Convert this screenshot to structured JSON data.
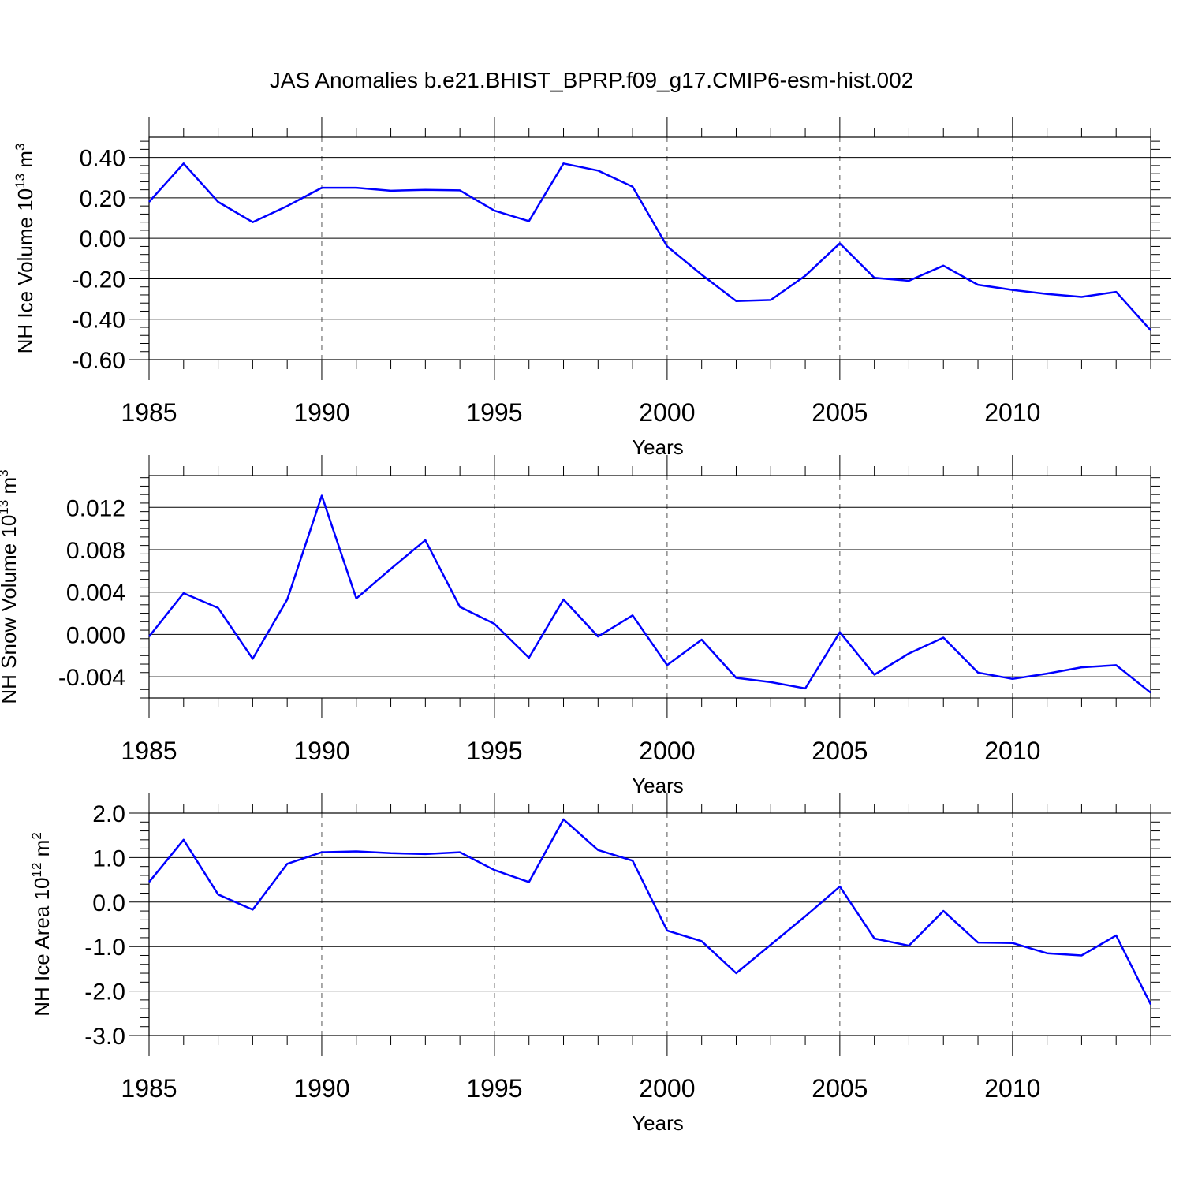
{
  "title": "JAS Anomalies b.e21.BHIST_BPRP.f09_g17.CMIP6-esm-hist.002",
  "colors": {
    "series": "#0000ff",
    "axes": "#000000",
    "grid": "#555555"
  },
  "chart_data": [
    {
      "type": "line",
      "ylabel": "NH Ice Volume 10",
      "ylabel_exp": "13",
      "ylabel_unit": "m",
      "ylabel_unit_exp": "3",
      "xlabel": "Years",
      "xlim": [
        1985,
        2014
      ],
      "ylim": [
        -0.6,
        0.5
      ],
      "yticks": [
        -0.6,
        -0.4,
        -0.2,
        0.0,
        0.2,
        0.4
      ],
      "ytick_labels": [
        "-0.60",
        "-0.40",
        "-0.20",
        "0.00",
        "0.20",
        "0.40"
      ],
      "xticks": [
        1985,
        1990,
        1995,
        2000,
        2005,
        2010
      ],
      "xtick_labels": [
        "1985",
        "1990",
        "1995",
        "2000",
        "2005",
        "2010"
      ],
      "grid_x": [
        1990,
        1995,
        2000,
        2005,
        2010
      ],
      "x": [
        1985,
        1986,
        1987,
        1988,
        1989,
        1990,
        1991,
        1992,
        1993,
        1994,
        1995,
        1996,
        1997,
        1998,
        1999,
        2000,
        2001,
        2002,
        2003,
        2004,
        2005,
        2006,
        2007,
        2008,
        2009,
        2010,
        2011,
        2012,
        2013,
        2014
      ],
      "values": [
        0.18,
        0.37,
        0.18,
        0.08,
        0.16,
        0.25,
        0.25,
        0.235,
        0.24,
        0.237,
        0.137,
        0.085,
        0.37,
        0.335,
        0.255,
        -0.04,
        -0.18,
        -0.31,
        -0.305,
        -0.185,
        -0.025,
        -0.195,
        -0.21,
        -0.135,
        -0.23,
        -0.255,
        -0.275,
        -0.29,
        -0.265,
        -0.455
      ]
    },
    {
      "type": "line",
      "ylabel": "NH Snow Volume 10",
      "ylabel_exp": "13",
      "ylabel_unit": "m",
      "ylabel_unit_exp": "3",
      "xlabel": "Years",
      "xlim": [
        1985,
        2014
      ],
      "ylim": [
        -0.006,
        0.015
      ],
      "yticks": [
        -0.004,
        0.0,
        0.004,
        0.008,
        0.012
      ],
      "ytick_labels": [
        "-0.004",
        "0.000",
        "0.004",
        "0.008",
        "0.012"
      ],
      "xticks": [
        1985,
        1990,
        1995,
        2000,
        2005,
        2010
      ],
      "xtick_labels": [
        "1985",
        "1990",
        "1995",
        "2000",
        "2005",
        "2010"
      ],
      "grid_x": [
        1995,
        2000,
        2005,
        2010
      ],
      "x": [
        1985,
        1986,
        1987,
        1988,
        1989,
        1990,
        1991,
        1992,
        1993,
        1994,
        1995,
        1996,
        1997,
        1998,
        1999,
        2000,
        2001,
        2002,
        2003,
        2004,
        2005,
        2006,
        2007,
        2008,
        2009,
        2010,
        2011,
        2012,
        2013,
        2014
      ],
      "values": [
        -0.0002,
        0.0039,
        0.0025,
        -0.0023,
        0.0033,
        0.0131,
        0.0034,
        0.0062,
        0.0089,
        0.0026,
        0.001,
        -0.0022,
        0.0033,
        -0.0002,
        0.0018,
        -0.0029,
        -0.0005,
        -0.0041,
        -0.0045,
        -0.0051,
        0.0002,
        -0.0038,
        -0.0018,
        -0.0003,
        -0.0036,
        -0.0042,
        -0.0037,
        -0.0031,
        -0.0029,
        -0.0055
      ]
    },
    {
      "type": "line",
      "ylabel": "NH Ice Area 10",
      "ylabel_exp": "12",
      "ylabel_unit": "m",
      "ylabel_unit_exp": "2",
      "xlabel": "Years",
      "xlim": [
        1985,
        2014
      ],
      "ylim": [
        -3.0,
        2.0
      ],
      "yticks": [
        -3.0,
        -2.0,
        -1.0,
        0.0,
        1.0,
        2.0
      ],
      "ytick_labels": [
        "-3.0",
        "-2.0",
        "-1.0",
        "0.0",
        "1.0",
        "2.0"
      ],
      "xticks": [
        1985,
        1990,
        1995,
        2000,
        2005,
        2010
      ],
      "xtick_labels": [
        "1985",
        "1990",
        "1995",
        "2000",
        "2005",
        "2010"
      ],
      "grid_x": [
        1990,
        1995,
        2000,
        2005,
        2010
      ],
      "x": [
        1985,
        1986,
        1987,
        1988,
        1989,
        1990,
        1991,
        1992,
        1993,
        1994,
        1995,
        1996,
        1997,
        1998,
        1999,
        2000,
        2001,
        2002,
        2003,
        2004,
        2005,
        2006,
        2007,
        2008,
        2009,
        2010,
        2011,
        2012,
        2013,
        2014
      ],
      "values": [
        0.45,
        1.4,
        0.17,
        -0.17,
        0.86,
        1.12,
        1.14,
        1.1,
        1.08,
        1.12,
        0.72,
        0.45,
        1.86,
        1.17,
        0.93,
        -0.64,
        -0.88,
        -1.6,
        -0.96,
        -0.32,
        0.35,
        -0.82,
        -0.98,
        -0.2,
        -0.91,
        -0.92,
        -1.15,
        -1.2,
        -0.75,
        -2.3
      ]
    }
  ]
}
